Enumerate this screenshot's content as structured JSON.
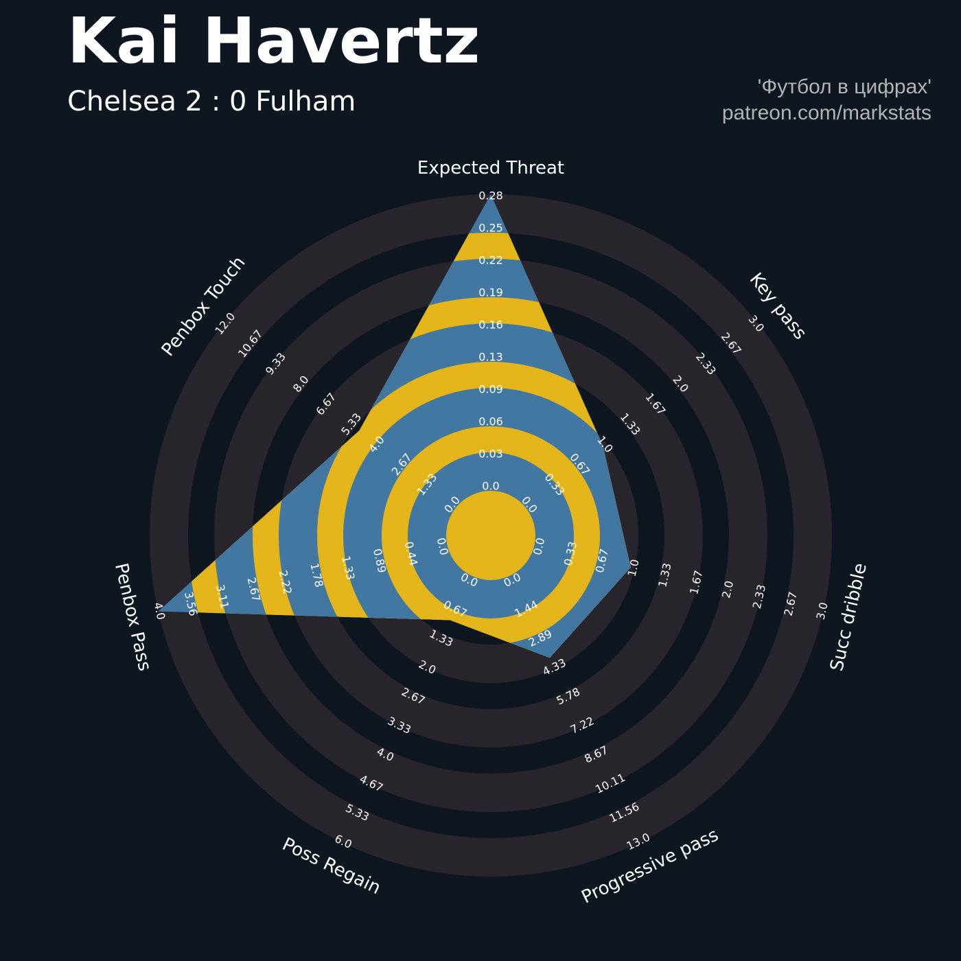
{
  "title": "Kai Havertz",
  "subtitle": "Chelsea 2 : 0 Fulham",
  "credits": [
    "'Футбол в цифрах'",
    "patreon.com/markstats"
  ],
  "colors": {
    "background": "#0e1720",
    "ring_light": "#28252c",
    "polygon": "#4177a0",
    "polygon_alt": "#e4b51b",
    "text": "#ffffff",
    "credit": "#b4b4b4"
  },
  "chart_data": {
    "type": "radar",
    "params": [
      "Expected Threat",
      "Key pass",
      "Succ dribble",
      "Progressive pass",
      "Poss Regain",
      "Penbox Pass",
      "Penbox Touch"
    ],
    "ranges": [
      [
        0,
        0.28
      ],
      [
        0,
        3.0
      ],
      [
        0,
        3.0
      ],
      [
        0,
        13.0
      ],
      [
        0,
        6.0
      ],
      [
        0,
        4.0
      ],
      [
        0,
        12.0
      ]
    ],
    "values": [
      0.28,
      1.0,
      1.0,
      4.0,
      1.0,
      4.0,
      5.0
    ],
    "tick_labels": [
      [
        "0.0",
        "0.03",
        "0.06",
        "0.09",
        "0.13",
        "0.16",
        "0.19",
        "0.22",
        "0.25",
        "0.28"
      ],
      [
        "0.0",
        "0.33",
        "0.67",
        "1.0",
        "1.33",
        "1.67",
        "2.0",
        "2.33",
        "2.67",
        "3.0"
      ],
      [
        "0.0",
        "0.33",
        "0.67",
        "1.0",
        "1.33",
        "1.67",
        "2.0",
        "2.33",
        "2.67",
        "3.0"
      ],
      [
        "0.0",
        "1.44",
        "2.89",
        "4.33",
        "5.78",
        "7.22",
        "8.67",
        "10.11",
        "11.56",
        "13.0"
      ],
      [
        "0.0",
        "0.67",
        "1.33",
        "2.0",
        "2.67",
        "3.33",
        "4.0",
        "4.67",
        "5.33",
        "6.0"
      ],
      [
        "0.0",
        "0.44",
        "0.89",
        "1.33",
        "1.78",
        "2.22",
        "2.67",
        "3.11",
        "3.56",
        "4.0"
      ],
      [
        "0.0",
        "1.33",
        "2.67",
        "4.0",
        "5.33",
        "6.67",
        "8.0",
        "9.33",
        "10.67",
        "12.0"
      ]
    ]
  }
}
